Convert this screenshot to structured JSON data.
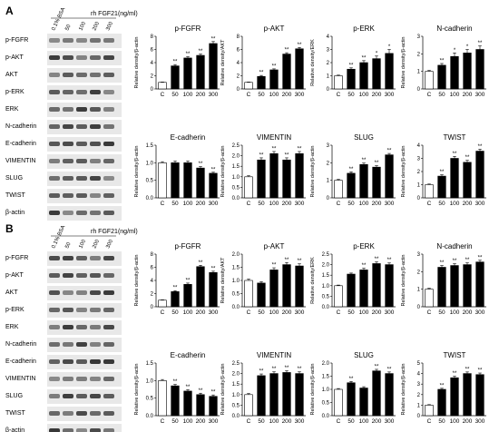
{
  "panels": [
    {
      "letter": "A",
      "treatment_header": "rh FGF21(ng/ml)",
      "lane_labels": [
        "0.1% BSA",
        "50",
        "100",
        "200",
        "300"
      ],
      "blot_rows": [
        "p-FGFR",
        "p-AKT",
        "AKT",
        "p-ERK",
        "ERK",
        "N-cadherin",
        "E-cadherin",
        "VIMENTIN",
        "SLUG",
        "TWIST",
        "β-actin"
      ]
    },
    {
      "letter": "B",
      "treatment_header": "rh FGF21(ng/ml)",
      "lane_labels": [
        "0.1% BSA",
        "50",
        "100",
        "200",
        "300"
      ],
      "blot_rows": [
        "p-FGFR",
        "p-AKT",
        "AKT",
        "p-ERK",
        "ERK",
        "N-cadherin",
        "E-cadherin",
        "VIMENTIN",
        "SLUG",
        "TWIST",
        "β-actin"
      ]
    }
  ],
  "chart_data": [
    {
      "type": "bar",
      "panel": "A",
      "title": "p-FGFR",
      "ylabel": "Relative density/β-actin",
      "categories": [
        "C",
        "50",
        "100",
        "200",
        "300"
      ],
      "values": [
        1.0,
        3.5,
        4.7,
        5.1,
        6.9
      ],
      "errors": [
        0.05,
        0.2,
        0.2,
        0.2,
        0.3
      ],
      "sig": [
        "",
        "**",
        "**",
        "**",
        "**"
      ],
      "ylim": [
        0,
        8
      ],
      "yticks": [
        0,
        2,
        4,
        6,
        8
      ]
    },
    {
      "type": "bar",
      "panel": "A",
      "title": "p-AKT",
      "ylabel": "Relative density/AKT",
      "categories": [
        "C",
        "50",
        "100",
        "200",
        "300"
      ],
      "values": [
        1.0,
        1.9,
        2.9,
        5.3,
        6.1
      ],
      "errors": [
        0.05,
        0.15,
        0.15,
        0.2,
        0.2
      ],
      "sig": [
        "",
        "**",
        "**",
        "**",
        "**"
      ],
      "ylim": [
        0,
        8
      ],
      "yticks": [
        0,
        2,
        4,
        6,
        8
      ]
    },
    {
      "type": "bar",
      "panel": "A",
      "title": "p-ERK",
      "ylabel": "Relative density/ERK",
      "categories": [
        "C",
        "50",
        "100",
        "200",
        "300"
      ],
      "values": [
        1.0,
        1.5,
        2.0,
        2.3,
        2.7
      ],
      "errors": [
        0.05,
        0.1,
        0.15,
        0.2,
        0.3
      ],
      "sig": [
        "",
        "**",
        "**",
        "*",
        "*"
      ],
      "ylim": [
        0,
        4
      ],
      "yticks": [
        0,
        1,
        2,
        3,
        4
      ]
    },
    {
      "type": "bar",
      "panel": "A",
      "title": "N-cadherin",
      "ylabel": "Relative density/β-actin",
      "categories": [
        "C",
        "50",
        "100",
        "200",
        "300"
      ],
      "values": [
        1.0,
        1.35,
        1.85,
        2.05,
        2.25
      ],
      "errors": [
        0.05,
        0.1,
        0.2,
        0.2,
        0.2
      ],
      "sig": [
        "",
        "**",
        "*",
        "*",
        "**"
      ],
      "ylim": [
        0,
        3
      ],
      "yticks": [
        0,
        1,
        2,
        3
      ]
    },
    {
      "type": "bar",
      "panel": "A",
      "title": "E-cadherin",
      "ylabel": "Relative density/β-actin",
      "categories": [
        "C",
        "50",
        "100",
        "200",
        "300"
      ],
      "values": [
        1.0,
        1.0,
        1.0,
        0.85,
        0.7
      ],
      "errors": [
        0.03,
        0.05,
        0.05,
        0.04,
        0.03
      ],
      "sig": [
        "",
        "",
        "",
        "**",
        "**"
      ],
      "ylim": [
        0,
        1.5
      ],
      "yticks": [
        0,
        0.5,
        1.0,
        1.5
      ]
    },
    {
      "type": "bar",
      "panel": "A",
      "title": "VIMENTIN",
      "ylabel": "Relative density/β-actin",
      "categories": [
        "C",
        "50",
        "100",
        "200",
        "300"
      ],
      "values": [
        1.0,
        1.8,
        2.1,
        1.8,
        2.1
      ],
      "errors": [
        0.05,
        0.1,
        0.1,
        0.1,
        0.1
      ],
      "sig": [
        "",
        "**",
        "**",
        "**",
        "**"
      ],
      "ylim": [
        0,
        2.5
      ],
      "yticks": [
        0,
        0.5,
        1.0,
        1.5,
        2.0,
        2.5
      ]
    },
    {
      "type": "bar",
      "panel": "A",
      "title": "SLUG",
      "ylabel": "Relative density/β-actin",
      "categories": [
        "C",
        "50",
        "100",
        "200",
        "300"
      ],
      "values": [
        1.0,
        1.4,
        1.9,
        1.75,
        2.45
      ],
      "errors": [
        0.05,
        0.08,
        0.08,
        0.08,
        0.08
      ],
      "sig": [
        "",
        "**",
        "**",
        "**",
        "**"
      ],
      "ylim": [
        0,
        3
      ],
      "yticks": [
        0,
        1,
        2,
        3
      ]
    },
    {
      "type": "bar",
      "panel": "A",
      "title": "TWIST",
      "ylabel": "Relative density/β-actin",
      "categories": [
        "C",
        "50",
        "100",
        "200",
        "300"
      ],
      "values": [
        1.0,
        1.65,
        3.0,
        2.7,
        3.55
      ],
      "errors": [
        0.05,
        0.1,
        0.15,
        0.15,
        0.15
      ],
      "sig": [
        "",
        "**",
        "**",
        "**",
        "**"
      ],
      "ylim": [
        0,
        4
      ],
      "yticks": [
        0,
        1,
        2,
        3,
        4
      ]
    },
    {
      "type": "bar",
      "panel": "B",
      "title": "p-FGFR",
      "ylabel": "Relative density/β-actin",
      "categories": [
        "C",
        "50",
        "100",
        "200",
        "300"
      ],
      "values": [
        1.0,
        2.3,
        3.4,
        6.1,
        5.2
      ],
      "errors": [
        0.05,
        0.15,
        0.2,
        0.2,
        0.2
      ],
      "sig": [
        "",
        "**",
        "**",
        "**",
        "**"
      ],
      "ylim": [
        0,
        8
      ],
      "yticks": [
        0,
        2,
        4,
        6,
        8
      ]
    },
    {
      "type": "bar",
      "panel": "B",
      "title": "p-AKT",
      "ylabel": "Relative density/AKT",
      "categories": [
        "C",
        "50",
        "100",
        "200",
        "300"
      ],
      "values": [
        1.0,
        0.9,
        1.4,
        1.6,
        1.55
      ],
      "errors": [
        0.05,
        0.05,
        0.08,
        0.08,
        0.08
      ],
      "sig": [
        "",
        "",
        "**",
        "**",
        "**"
      ],
      "ylim": [
        0,
        2.0
      ],
      "yticks": [
        0,
        0.5,
        1.0,
        1.5,
        2.0
      ]
    },
    {
      "type": "bar",
      "panel": "B",
      "title": "p-ERK",
      "ylabel": "Relative density/ERK",
      "categories": [
        "C",
        "50",
        "100",
        "200",
        "300"
      ],
      "values": [
        1.0,
        1.55,
        1.75,
        2.05,
        2.0
      ],
      "errors": [
        0.03,
        0.05,
        0.08,
        0.08,
        0.08
      ],
      "sig": [
        "",
        "",
        "**",
        "**",
        "**"
      ],
      "ylim": [
        0,
        2.5
      ],
      "yticks": [
        0,
        0.5,
        1.0,
        1.5,
        2.0,
        2.5
      ]
    },
    {
      "type": "bar",
      "panel": "B",
      "title": "N-cadherin",
      "ylabel": "Relative density/β-actin",
      "categories": [
        "C",
        "50",
        "100",
        "200",
        "300"
      ],
      "values": [
        1.0,
        2.25,
        2.35,
        2.4,
        2.55
      ],
      "errors": [
        0.05,
        0.1,
        0.1,
        0.1,
        0.1
      ],
      "sig": [
        "",
        "**",
        "**",
        "**",
        "**"
      ],
      "ylim": [
        0,
        3
      ],
      "yticks": [
        0,
        1,
        2,
        3
      ]
    },
    {
      "type": "bar",
      "panel": "B",
      "title": "E-cadherin",
      "ylabel": "Relative density/β-actin",
      "categories": [
        "C",
        "50",
        "100",
        "200",
        "300"
      ],
      "values": [
        1.0,
        0.85,
        0.7,
        0.6,
        0.55
      ],
      "errors": [
        0.03,
        0.04,
        0.04,
        0.04,
        0.04
      ],
      "sig": [
        "",
        "**",
        "**",
        "**",
        "**"
      ],
      "ylim": [
        0,
        1.5
      ],
      "yticks": [
        0,
        0.5,
        1.0,
        1.5
      ]
    },
    {
      "type": "bar",
      "panel": "B",
      "title": "VIMENTIN",
      "ylabel": "Relative density/β-actin",
      "categories": [
        "C",
        "50",
        "100",
        "200",
        "300"
      ],
      "values": [
        1.0,
        1.9,
        2.0,
        2.05,
        2.0
      ],
      "errors": [
        0.05,
        0.08,
        0.08,
        0.08,
        0.08
      ],
      "sig": [
        "",
        "**",
        "**",
        "**",
        "**"
      ],
      "ylim": [
        0,
        2.5
      ],
      "yticks": [
        0,
        0.5,
        1.0,
        1.5,
        2.0,
        2.5
      ]
    },
    {
      "type": "bar",
      "panel": "B",
      "title": "SLUG",
      "ylabel": "Relative density/β-actin",
      "categories": [
        "C",
        "50",
        "100",
        "200",
        "300"
      ],
      "values": [
        1.0,
        1.25,
        1.05,
        1.7,
        1.6
      ],
      "errors": [
        0.03,
        0.05,
        0.05,
        0.06,
        0.06
      ],
      "sig": [
        "",
        "**",
        "",
        "**",
        "**"
      ],
      "ylim": [
        0,
        2.0
      ],
      "yticks": [
        0,
        0.5,
        1.0,
        1.5,
        2.0
      ]
    },
    {
      "type": "bar",
      "panel": "B",
      "title": "TWIST",
      "ylabel": "Relative density/β-actin",
      "categories": [
        "C",
        "50",
        "100",
        "200",
        "300"
      ],
      "values": [
        1.0,
        2.5,
        3.6,
        4.0,
        3.9
      ],
      "errors": [
        0.05,
        0.1,
        0.15,
        0.15,
        0.15
      ],
      "sig": [
        "",
        "**",
        "**",
        "**",
        "**"
      ],
      "ylim": [
        0,
        5
      ],
      "yticks": [
        0,
        1,
        2,
        3,
        4,
        5
      ]
    }
  ]
}
